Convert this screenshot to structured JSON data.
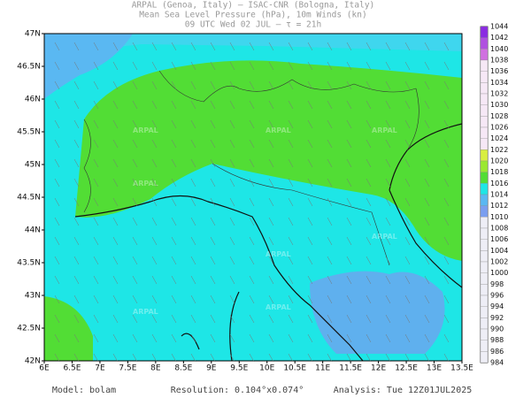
{
  "header": {
    "line1": "ARPAL (Genoa, Italy)  –  ISAC-CNR (Bologna, Italy)",
    "line2": "Mean Sea Level Pressure (hPa), 10m Winds (kn)",
    "line3": "09 UTC Wed 02 JUL  –  τ = 21h"
  },
  "lat_labels": [
    "47N",
    "46.5N",
    "46N",
    "45.5N",
    "45N",
    "44.5N",
    "44N",
    "43.5N",
    "43N",
    "42.5N",
    "42N"
  ],
  "lon_labels": [
    "6E",
    "6.5E",
    "7E",
    "7.5E",
    "8E",
    "8.5E",
    "9E",
    "9.5E",
    "10E",
    "10.5E",
    "11E",
    "11.5E",
    "12E",
    "12.5E",
    "13E",
    "13.5E"
  ],
  "colorbar_labels": [
    1044,
    1042,
    1040,
    1038,
    1036,
    1034,
    1032,
    1030,
    1028,
    1026,
    1024,
    1022,
    1020,
    1018,
    1016,
    1014,
    1012,
    1010,
    1008,
    1006,
    1004,
    1002,
    1000,
    998,
    996,
    994,
    992,
    990,
    988,
    986,
    984
  ],
  "watermark": "ARPAL",
  "footer": {
    "model": "Model: bolam",
    "resolution": "Resolution: 0.104°x0.074°",
    "analysis": "Analysis: Tue 12Z01JUL2025"
  }
}
